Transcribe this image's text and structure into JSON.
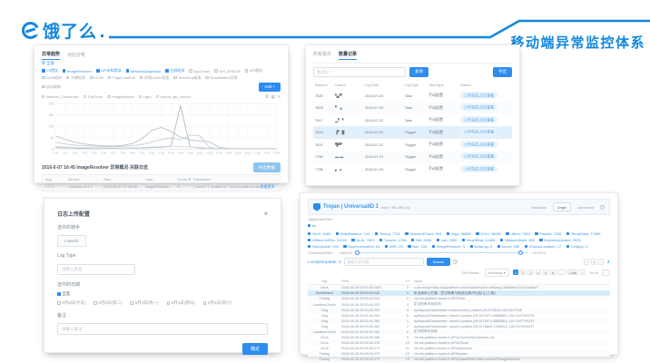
{
  "brand": {
    "logo_text": "饿了么",
    "accent": "#1587dd"
  },
  "slide_title": "移动端异常监控体系",
  "trend": {
    "tabs": [
      {
        "label": "异常趋势",
        "active": true
      },
      {
        "label": "对比分析",
        "active": false
      }
    ],
    "all_link": "≣ 全部",
    "series_on": [
      "JS错误",
      "ImageResolver",
      "API未知错误",
      "NetworkDiagnostic",
      "白屏检测"
    ],
    "series_off": [
      "AppCrash",
      "API_ERROR",
      "API超时",
      "CDN劫持",
      "卡顿检测",
      "OOM",
      "PageLoadFail",
      "本地Cache失败",
      "WebView崩溃",
      "ReactNative异常"
    ],
    "auto_refresh_label": "自动刷新",
    "add_button": "Add +",
    "radio_filters": [
      "Network_Customize",
      "FullOrder",
      "ImageMonitor",
      "Light",
      "Hybrid_api_concur"
    ],
    "mini_icons": [
      "≣",
      "▦",
      "⟳"
    ],
    "chart_data": {
      "type": "line",
      "x_labels": [
        "0:00",
        "1:00",
        "2:00",
        "3:00",
        "4:00",
        "5:00",
        "6:00",
        "7:00",
        "8:00",
        "9:00",
        "10:00",
        "11:00",
        "12:00",
        "13:00",
        "14:00",
        "15:00",
        "16:00",
        "17:00",
        "18:00",
        "19:00",
        "20:00",
        "21:00",
        "22:00",
        "23:00"
      ],
      "ylim": [
        0,
        200
      ],
      "yticks": [
        200,
        150,
        100,
        50,
        0
      ],
      "grid": true,
      "legend_position": "none",
      "series": [
        {
          "name": "JS错误",
          "color": "#b6bfc9",
          "values": [
            58,
            42,
            30,
            22,
            17,
            14,
            13,
            16,
            24,
            46,
            82,
            95,
            78,
            52,
            40,
            36,
            32,
            8,
            3,
            2,
            2,
            2,
            2,
            2
          ]
        },
        {
          "name": "ImageResolver",
          "color": "#aeb9c4",
          "values": [
            6,
            5,
            4,
            3,
            3,
            3,
            3,
            4,
            4,
            5,
            6,
            8,
            12,
            192,
            10,
            4,
            3,
            2,
            2,
            2,
            2,
            2,
            2,
            2
          ]
        },
        {
          "name": "API未知错误",
          "color": "#c3ccd4",
          "values": [
            30,
            22,
            17,
            14,
            12,
            11,
            11,
            12,
            14,
            20,
            30,
            42,
            48,
            40,
            62,
            58,
            8,
            2,
            2,
            2,
            2,
            2,
            2,
            2
          ]
        },
        {
          "name": "白屏检测",
          "color": "#d5dbe1",
          "values": [
            12,
            9,
            7,
            6,
            5,
            5,
            5,
            5,
            6,
            7,
            9,
            11,
            13,
            11,
            9,
            7,
            4,
            2,
            2,
            2,
            2,
            2,
            2,
            2
          ]
        }
      ]
    },
    "detail_title": "2016-6-07 16:45 ImageResolver 异常概况·关联日志",
    "export_button": "导出数据",
    "table": {
      "columns": [
        "App",
        "Device",
        "Time",
        "Type",
        "Count ⇅",
        "Parameter"
      ],
      "rows": [
        [
          "1 2 3",
          "unknown-6.4.1",
          "2016-06-07 17:58:08",
          "ImageResolver",
          "3",
          "{\"count\":1,\"hostError\":\"com.bundle.not.found\",\"res\":\"fuzzy.load.failed\"…"
        ]
      ],
      "more_link": "查看更多"
    }
  },
  "batches": {
    "tabs": [
      {
        "label": "所有批次",
        "active": false
      },
      {
        "label": "数量记录",
        "active": true
      }
    ],
    "search_placeholder": "批次Id",
    "search_button": "查询",
    "export_button": "导出",
    "columns": [
      "BatchId",
      "UserId",
      "LogTime",
      "LogType",
      "TaskType",
      "Status"
    ],
    "status_label": "上传完成,点击查看",
    "rows": [
      {
        "batch": "7820",
        "user": "▚▞▘",
        "time": "2016-07-20",
        "type": "Task",
        "task": "手动配置",
        "hl": false
      },
      {
        "batch": "7825",
        "user": "▘ ▗",
        "time": "2016-07-20",
        "type": "Task",
        "task": "手动配置",
        "hl": false
      },
      {
        "batch": "7817",
        "user": "▂▘▝",
        "time": "2016-07-22",
        "type": "Task",
        "task": "手动配置",
        "hl": false
      },
      {
        "batch": "7824",
        "user": "▐▘▐▌",
        "time": "2016-07-22",
        "type": "Trigger",
        "task": "手动配置",
        "hl": true
      },
      {
        "batch": "7821",
        "user": "▜▀▘",
        "time": "2016-07-22",
        "type": "Trigger",
        "task": "手动配置",
        "hl": false
      },
      {
        "batch": "7780",
        "user": "▬ ▬",
        "time": "2016-07-21",
        "type": "Trigger",
        "task": "手动配置",
        "hl": false
      },
      {
        "batch": "7785",
        "user": "▖ ▲",
        "time": "2016-07-20",
        "type": "Trigger",
        "task": "手动配置",
        "hl": false
      }
    ]
  },
  "upload_form": {
    "title": "日志上传配置",
    "corner_icon": "✚",
    "field_rider_label": "选中的骑手",
    "rider_chip": "t-NeeiG",
    "field_logtype_label": "Log Type",
    "logtype_placeholder": "请输入类型",
    "field_date_label": "选中的日期",
    "select_all_label": "全选",
    "dates": [
      "6月6日(今天)",
      "6月5日(周二)",
      "6月4日(周一)",
      "6月3日(周日)",
      "6月2日(周六)"
    ],
    "field_remark_label": "备注",
    "remark_placeholder": "请输入备注",
    "submit_button": "确定"
  },
  "trojan": {
    "title": "Trojan | UniversalID 1",
    "subtitle": "total :  561   883  (4)",
    "view_tabs": [
      {
        "label": "RawData",
        "active": false
      },
      {
        "label": "Origin",
        "active": true
      },
      {
        "label": "Advanced",
        "active": false
      }
    ],
    "help_icon": "?",
    "tag_filter_label": "TagName/Filter :",
    "all_chip": "all",
    "chips": [
      "OnJs: 5489",
      "BabyBalance: 144",
      "Timing: 7732",
      "KeywordCount: 594",
      "Argo: 36880",
      "OCtrl: 26084",
      "uBion: 7384",
      "Passult: 2336",
      "TempDiary: 77386",
      "OfflineCellTec: 31349",
      "AuJs: 7603",
      "TraceIn: 4738",
      "Net: 4346",
      "Lan: 2380",
      "HeartBeat: 12405",
      "NetworkState: 380",
      "InventoryUpdate: 2833",
      "NavUpdate: 194",
      "Synchronization: 63",
      "WiFi: 29",
      "Nav: 153",
      "ImageResolver: 3",
      "DataLog: 8",
      "Decor: 030",
      "ChooseLocation: 17",
      "CellApp: 4"
    ],
    "threshold_label": "Threshold/Filter :",
    "threshold_min": "-462939",
    "threshold_max": "+429070",
    "search_tag_label": "LocationUpdate: 3",
    "search_placeholder": "搜索日志内容",
    "search_button": "Search",
    "mini_pager": [
      "‹",
      "1",
      "›"
    ],
    "result_label": "Get Result :",
    "result_select": "Message ▾",
    "pagination": [
      "1",
      "2",
      "3",
      "4",
      "5",
      "6",
      "…",
      "1988"
    ],
    "pagination_next": "›",
    "goto_label": "Go to",
    "columns": [
      "Tag",
      "Time",
      "Ct",
      "Value"
    ],
    "rows": [
      {
        "tag": "OnJs",
        "time": "2016-06-26 09:00:48 GMT",
        "ct": "3",
        "value": "a.url.res/api?city=hz&platform=android&network=wifi&sig=26a9f8e437c21aa06cf7",
        "hl": false
      },
      {
        "tag": "DomDetect",
        "time": "2016-06-26 09:00:49.242",
        "ct": "1",
        "value": "非法请求已拦截 : 定位结果与配送范围不匹配 (已上报)",
        "hl": true
      },
      {
        "tag": "Timing",
        "time": "2016-06-26 09:00:49.243",
        "ct": "2",
        "value": "me.ele.platform.home.b.APIClient",
        "hl": false
      },
      {
        "tag": "LocationCheck",
        "time": "2016-06-26 09:00:49.233",
        "ct": "3",
        "value": "定位结果未获取到",
        "hl": false
      },
      {
        "tag": "Xlog",
        "time": "2016-06-26 09:00:49.253",
        "ct": "4",
        "value": "api/layout/Datastream.c/Usercontrol.p.native (26.917820) 118.0347948",
        "hl": false
      },
      {
        "tag": "Xlog",
        "time": "2016-06-26 09:01:49.259",
        "ct": "5",
        "value": "api/layout/Datastream: report/Location (26.9173471.8888881) 118.1947992978",
        "hl": false
      },
      {
        "tag": "Xlog",
        "time": "2016-06-26 09:02:49.260",
        "ct": "4",
        "value": "api/layout/Datastream: report/Location (26.9173471.8888881) 118.1947799297",
        "hl": false
      },
      {
        "tag": "Xlog",
        "time": "2016-06-26 09:03:49.260",
        "ct": "7",
        "value": "api/layout/Datastream: report/Location (26.9176849.1764811) 118.9379916437",
        "hl": false
      },
      {
        "tag": "LocationCheck",
        "time": "2016-06-26 09:05:49.263",
        "ct": "6",
        "value": "定位结果未获取",
        "hl": false
      },
      {
        "tag": "OnJs",
        "time": "2016-06-26 09:08:49.268",
        "ct": "9",
        "value": "me.ele.platform.home.b.APIUrlCenter&onService.rac",
        "hl": false
      },
      {
        "tag": "OnJs",
        "time": "2016-06-26 09:09:49.270",
        "ct": "10",
        "value": "me.ele.platform.home.b.APIUrlScan",
        "hl": false
      },
      {
        "tag": "OnJs",
        "time": "2016-06-26 09:09:49.271",
        "ct": "11",
        "value": "me.ele.platform.home.b.APIredirection",
        "hl": false
      },
      {
        "tag": "Timing",
        "time": "2016-06-26 09:09:49.272",
        "ct": "12",
        "value": "me.ele.platform.home.b.APIMonitor",
        "hl": false
      },
      {
        "tag": "Timing",
        "time": "2016-06-26 09:09:49.273",
        "ct": "13",
        "value": "me.ele.platform.home.b.APIUpdateRiderOrderLaunchTimingDetection",
        "hl": false
      }
    ]
  }
}
